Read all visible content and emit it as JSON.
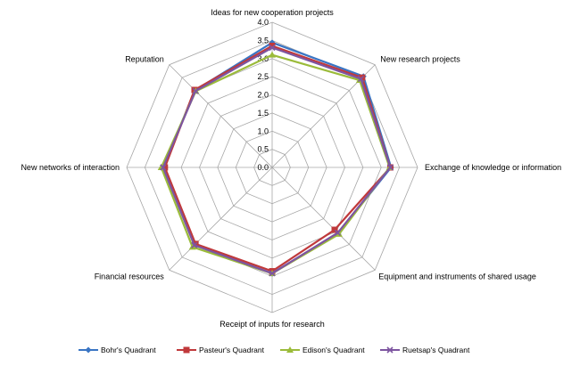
{
  "chart_data": {
    "type": "radar",
    "title": "",
    "axes": [
      "Ideas for new cooperation projects",
      "New research projects",
      "Exchange of knowledge or information",
      "Equipment and instruments of shared usage",
      "Receipt of inputs for research",
      "Financial resources",
      "New networks of interaction",
      "Reputation"
    ],
    "ticks": [
      "0.0",
      "0.5",
      "1.0",
      "1.5",
      "2.0",
      "2.5",
      "3.0",
      "3.5",
      "4.0"
    ],
    "range": [
      0,
      4
    ],
    "grid": true,
    "legend_position": "bottom",
    "series": [
      {
        "name": "Bohr's Quadrant",
        "color": "#3a75c4",
        "marker": "diamond",
        "values": [
          3.44,
          3.55,
          3.27,
          2.57,
          2.92,
          3.02,
          3.0,
          3.0
        ]
      },
      {
        "name": "Pasteur's Quadrant",
        "color": "#c0393b",
        "marker": "square",
        "values": [
          3.35,
          3.5,
          3.25,
          2.43,
          2.86,
          2.98,
          2.95,
          3.02
        ]
      },
      {
        "name": "Edison's Quadrant",
        "color": "#9bbb3a",
        "marker": "triangle",
        "values": [
          3.1,
          3.4,
          3.23,
          2.6,
          2.92,
          3.1,
          3.05,
          2.97
        ]
      },
      {
        "name": "Ruetsap's Quadrant",
        "color": "#7d55a0",
        "marker": "x",
        "values": [
          3.3,
          3.45,
          3.25,
          2.55,
          2.92,
          3.03,
          3.0,
          2.98
        ]
      }
    ]
  }
}
